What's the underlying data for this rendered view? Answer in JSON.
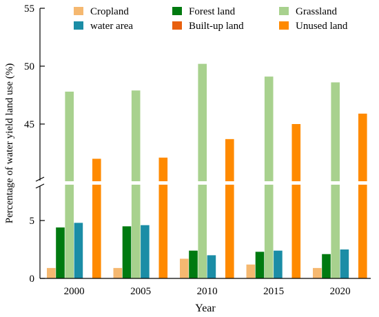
{
  "chart_data": {
    "type": "bar",
    "title": "",
    "xlabel": "Year",
    "ylabel": "Percentage of water yield land use (%)",
    "categories": [
      "2000",
      "2005",
      "2010",
      "2015",
      "2020"
    ],
    "axis_break": {
      "lower_range": [
        0,
        7.5
      ],
      "upper_range": [
        40,
        55
      ]
    },
    "lower_ticks": [
      "0",
      "5"
    ],
    "upper_ticks": [
      "45",
      "50",
      "55"
    ],
    "legend_position": "top",
    "series": [
      {
        "name": "Cropland",
        "color": "#F5B870",
        "values": [
          0.9,
          0.9,
          1.7,
          1.2,
          0.9
        ]
      },
      {
        "name": "Forest land",
        "color": "#007A10",
        "values": [
          4.4,
          4.5,
          2.4,
          2.3,
          2.1
        ]
      },
      {
        "name": "Grassland",
        "color": "#A8D18E",
        "values": [
          47.8,
          47.9,
          50.2,
          49.1,
          48.6
        ]
      },
      {
        "name": "water area",
        "color": "#1B8DA6",
        "values": [
          4.8,
          4.6,
          2.0,
          2.4,
          2.5
        ]
      },
      {
        "name": "Built-up land",
        "color": "#E8600F",
        "values": [
          0.0,
          0.0,
          0.0,
          0.0,
          0.0
        ]
      },
      {
        "name": "Unused land",
        "color": "#FF8A00",
        "values": [
          42.0,
          42.1,
          43.7,
          45.0,
          45.9
        ]
      }
    ]
  }
}
